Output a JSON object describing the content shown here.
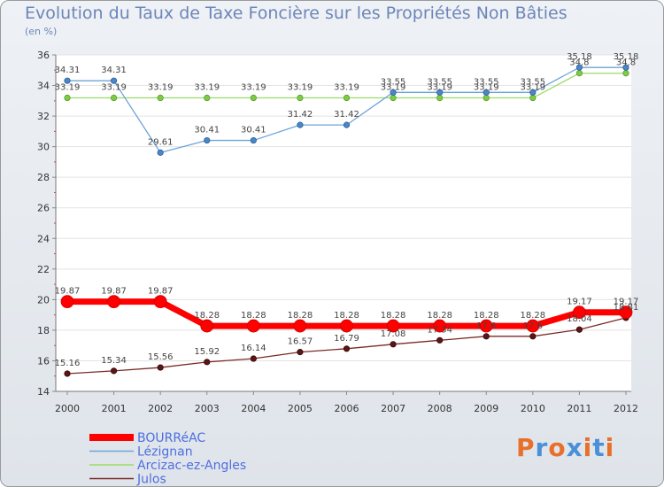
{
  "chart_data": {
    "type": "line",
    "title": "Evolution du Taux de Taxe Foncière sur les Propriétés Non Bâties",
    "subtitle": "(en %)",
    "xlabel": "",
    "ylabel": "(en %)",
    "ylim": [
      14,
      36
    ],
    "yticks": [
      14,
      16,
      18,
      20,
      22,
      24,
      26,
      28,
      30,
      32,
      34,
      36
    ],
    "x": [
      "2000",
      "2001",
      "2002",
      "2003",
      "2004",
      "2005",
      "2006",
      "2007",
      "2008",
      "2009",
      "2010",
      "2011",
      "2012"
    ],
    "legend_position": "bottom-left",
    "series": [
      {
        "name": "BOURRéAC",
        "color": "#ff0000",
        "values": [
          19.87,
          19.87,
          19.87,
          18.28,
          18.28,
          18.28,
          18.28,
          18.28,
          18.28,
          18.28,
          18.28,
          19.17,
          19.17
        ],
        "labels": [
          "19.87",
          "19.87",
          "19.87",
          "18.28",
          "18.28",
          "18.28",
          "18.28",
          "18.28",
          "18.28",
          "18.28",
          "18.28",
          "19.17",
          "19.17"
        ]
      },
      {
        "name": "Lézignan",
        "color": "#6fa4d8",
        "values": [
          34.31,
          34.31,
          29.61,
          30.41,
          30.41,
          31.42,
          31.42,
          33.55,
          33.55,
          33.55,
          33.55,
          35.18,
          35.18
        ],
        "labels": [
          "34.31",
          "34.31",
          "29.61",
          "30.41",
          "30.41",
          "31.42",
          "31.42",
          "33.55",
          "33.55",
          "33.55",
          "33.55",
          "35.18",
          "35.18"
        ]
      },
      {
        "name": "Arcizac-ez-Angles",
        "color": "#99dd66",
        "values": [
          33.19,
          33.19,
          33.19,
          33.19,
          33.19,
          33.19,
          33.19,
          33.19,
          33.19,
          33.19,
          33.19,
          34.8,
          34.8
        ],
        "labels": [
          "33.19",
          "33.19",
          "33.19",
          "33.19",
          "33.19",
          "33.19",
          "33.19",
          "33.19",
          "33.19",
          "33.19",
          "33.19",
          "34.8",
          "34.8"
        ]
      },
      {
        "name": "Julos",
        "color": "#7a2a2a",
        "values": [
          15.16,
          15.34,
          15.56,
          15.92,
          16.14,
          16.57,
          16.79,
          17.08,
          17.34,
          17.6,
          17.6,
          18.04,
          18.81
        ],
        "labels": [
          "15.16",
          "15.34",
          "15.56",
          "15.92",
          "16.14",
          "16.57",
          "16.79",
          "17.08",
          "17.34",
          "17.6",
          "17.6",
          "18.04",
          "18.81"
        ]
      }
    ]
  },
  "branding": {
    "logo_text": "Proxiti",
    "logo_colors": [
      "#e8702a",
      "#4a90d9",
      "#e8702a",
      "#4a90d9",
      "#e8702a",
      "#4a90d9",
      "#e8702a"
    ]
  }
}
